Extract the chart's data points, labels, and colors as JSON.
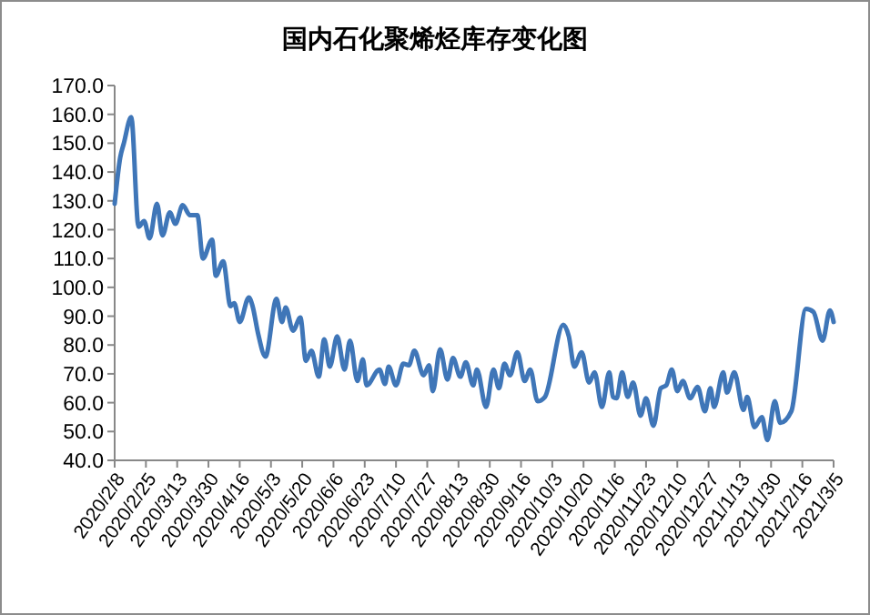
{
  "chart_data": {
    "type": "line",
    "title": "国内石化聚烯烃库存变化图",
    "grid": false,
    "marker": "none",
    "line_style": "solid",
    "x": [
      "2020-02-08",
      "2020-02-11",
      "2020-02-13",
      "2020-02-17",
      "2020-02-21",
      "2020-02-24",
      "2020-02-27",
      "2020-03-02",
      "2020-03-05",
      "2020-03-09",
      "2020-03-12",
      "2020-03-16",
      "2020-03-20",
      "2020-03-24",
      "2020-03-27",
      "2020-04-01",
      "2020-04-03",
      "2020-04-07",
      "2020-04-11",
      "2020-04-13",
      "2020-04-16",
      "2020-04-21",
      "2020-04-23",
      "2020-04-26",
      "2020-04-30",
      "2020-05-06",
      "2020-05-09",
      "2020-05-11",
      "2020-05-15",
      "2020-05-19",
      "2020-05-22",
      "2020-05-25",
      "2020-05-29",
      "2020-06-01",
      "2020-06-04",
      "2020-06-08",
      "2020-06-12",
      "2020-06-15",
      "2020-06-19",
      "2020-06-22",
      "2020-06-24",
      "2020-07-01",
      "2020-07-04",
      "2020-07-06",
      "2020-07-10",
      "2020-07-14",
      "2020-07-17",
      "2020-07-20",
      "2020-07-25",
      "2020-07-28",
      "2020-07-30",
      "2020-08-03",
      "2020-08-07",
      "2020-08-10",
      "2020-08-14",
      "2020-08-17",
      "2020-08-21",
      "2020-08-23",
      "2020-08-28",
      "2020-09-01",
      "2020-09-04",
      "2020-09-07",
      "2020-09-10",
      "2020-09-14",
      "2020-09-18",
      "2020-09-21",
      "2020-09-25",
      "2020-09-29",
      "2020-10-09",
      "2020-10-12",
      "2020-10-15",
      "2020-10-19",
      "2020-10-23",
      "2020-10-26",
      "2020-10-30",
      "2020-11-03",
      "2020-11-05",
      "2020-11-07",
      "2020-11-10",
      "2020-11-13",
      "2020-11-16",
      "2020-11-20",
      "2020-11-23",
      "2020-11-27",
      "2020-12-01",
      "2020-12-04",
      "2020-12-07",
      "2020-12-10",
      "2020-12-13",
      "2020-12-17",
      "2020-12-21",
      "2020-12-25",
      "2020-12-28",
      "2020-12-30",
      "2021-01-04",
      "2021-01-06",
      "2021-01-10",
      "2021-01-15",
      "2021-01-17",
      "2021-01-21",
      "2021-01-25",
      "2021-01-28",
      "2021-02-01",
      "2021-02-04",
      "2021-02-10",
      "2021-02-18",
      "2021-02-22",
      "2021-02-27",
      "2021-03-03",
      "2021-03-05"
    ],
    "series": [
      {
        "color": "#3f76b8",
        "values": [
          129,
          145,
          150,
          159,
          121,
          123,
          117,
          129,
          118,
          126,
          122,
          128.5,
          125,
          125,
          110,
          116.5,
          104,
          109,
          93.5,
          94.5,
          88,
          96.5,
          93.5,
          84,
          76,
          96,
          88,
          93,
          85,
          89.5,
          74.5,
          78,
          69,
          82,
          72.5,
          83,
          71.5,
          81.5,
          67.5,
          75,
          66,
          71.5,
          66.5,
          72.5,
          66,
          73.5,
          73,
          78,
          69.5,
          73,
          64,
          78.5,
          68,
          75.5,
          69,
          74,
          66,
          71.5,
          58.5,
          71.5,
          65,
          73.5,
          69.5,
          77.5,
          67.5,
          71.5,
          60.5,
          62,
          87,
          83,
          72.5,
          77.5,
          67,
          70.5,
          58.5,
          70.5,
          62,
          61.5,
          70.5,
          62,
          67,
          55.5,
          61.5,
          52,
          65,
          66,
          71.5,
          64,
          67.5,
          61.5,
          65.5,
          57,
          65,
          58.5,
          70.5,
          63.5,
          70.5,
          57.5,
          62,
          51.5,
          55,
          47,
          60.5,
          53,
          57,
          92.5,
          91.5,
          81.5,
          92,
          88
        ]
      }
    ],
    "xlim": [
      "2020-02-08",
      "2021-03-05"
    ],
    "xticks": [
      {
        "value": "2020-02-08",
        "label": "2020/2/8"
      },
      {
        "value": "2020-02-25",
        "label": "2020/2/25"
      },
      {
        "value": "2020-03-13",
        "label": "2020/3/13"
      },
      {
        "value": "2020-03-30",
        "label": "2020/3/30"
      },
      {
        "value": "2020-04-16",
        "label": "2020/4/16"
      },
      {
        "value": "2020-05-03",
        "label": "2020/5/3"
      },
      {
        "value": "2020-05-20",
        "label": "2020/5/20"
      },
      {
        "value": "2020-06-06",
        "label": "2020/6/6"
      },
      {
        "value": "2020-06-23",
        "label": "2020/6/23"
      },
      {
        "value": "2020-07-10",
        "label": "2020/7/10"
      },
      {
        "value": "2020-07-27",
        "label": "2020/7/27"
      },
      {
        "value": "2020-08-13",
        "label": "2020/8/13"
      },
      {
        "value": "2020-08-30",
        "label": "2020/8/30"
      },
      {
        "value": "2020-09-16",
        "label": "2020/9/16"
      },
      {
        "value": "2020-10-03",
        "label": "2020/10/3"
      },
      {
        "value": "2020-10-20",
        "label": "2020/10/20"
      },
      {
        "value": "2020-11-06",
        "label": "2020/11/6"
      },
      {
        "value": "2020-11-23",
        "label": "2020/11/23"
      },
      {
        "value": "2020-12-10",
        "label": "2020/12/10"
      },
      {
        "value": "2020-12-27",
        "label": "2020/12/27"
      },
      {
        "value": "2021-01-13",
        "label": "2021/1/13"
      },
      {
        "value": "2021-01-30",
        "label": "2021/1/30"
      },
      {
        "value": "2021-02-16",
        "label": "2021/2/16"
      },
      {
        "value": "2021-03-05",
        "label": "2021/3/5"
      }
    ],
    "ylim": [
      40,
      170
    ],
    "yticks": [
      {
        "value": 40,
        "label": "40.0"
      },
      {
        "value": 50,
        "label": "50.0"
      },
      {
        "value": 60,
        "label": "60.0"
      },
      {
        "value": 70,
        "label": "70.0"
      },
      {
        "value": 80,
        "label": "80.0"
      },
      {
        "value": 90,
        "label": "90.0"
      },
      {
        "value": 100,
        "label": "100.0"
      },
      {
        "value": 110,
        "label": "110.0"
      },
      {
        "value": 120,
        "label": "120.0"
      },
      {
        "value": 130,
        "label": "130.0"
      },
      {
        "value": 140,
        "label": "140.0"
      },
      {
        "value": 150,
        "label": "150.0"
      },
      {
        "value": 160,
        "label": "160.0"
      },
      {
        "value": 170,
        "label": "170.0"
      }
    ]
  }
}
